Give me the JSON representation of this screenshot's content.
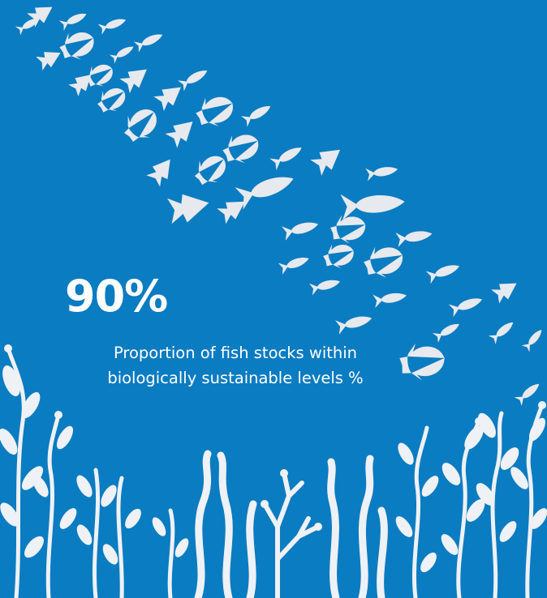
{
  "infographic": {
    "value": "90%",
    "label": "Proportion of fish stocks within biologically sustainable levels %"
  },
  "colors": {
    "background": "#0a7cc1",
    "fish": "#e6e9ee",
    "seaweed": "#eef1f5",
    "text": "#ffffff"
  },
  "icons": {
    "fish_school": "fish-school-illustration",
    "seaweed": "seaweed-illustration"
  }
}
